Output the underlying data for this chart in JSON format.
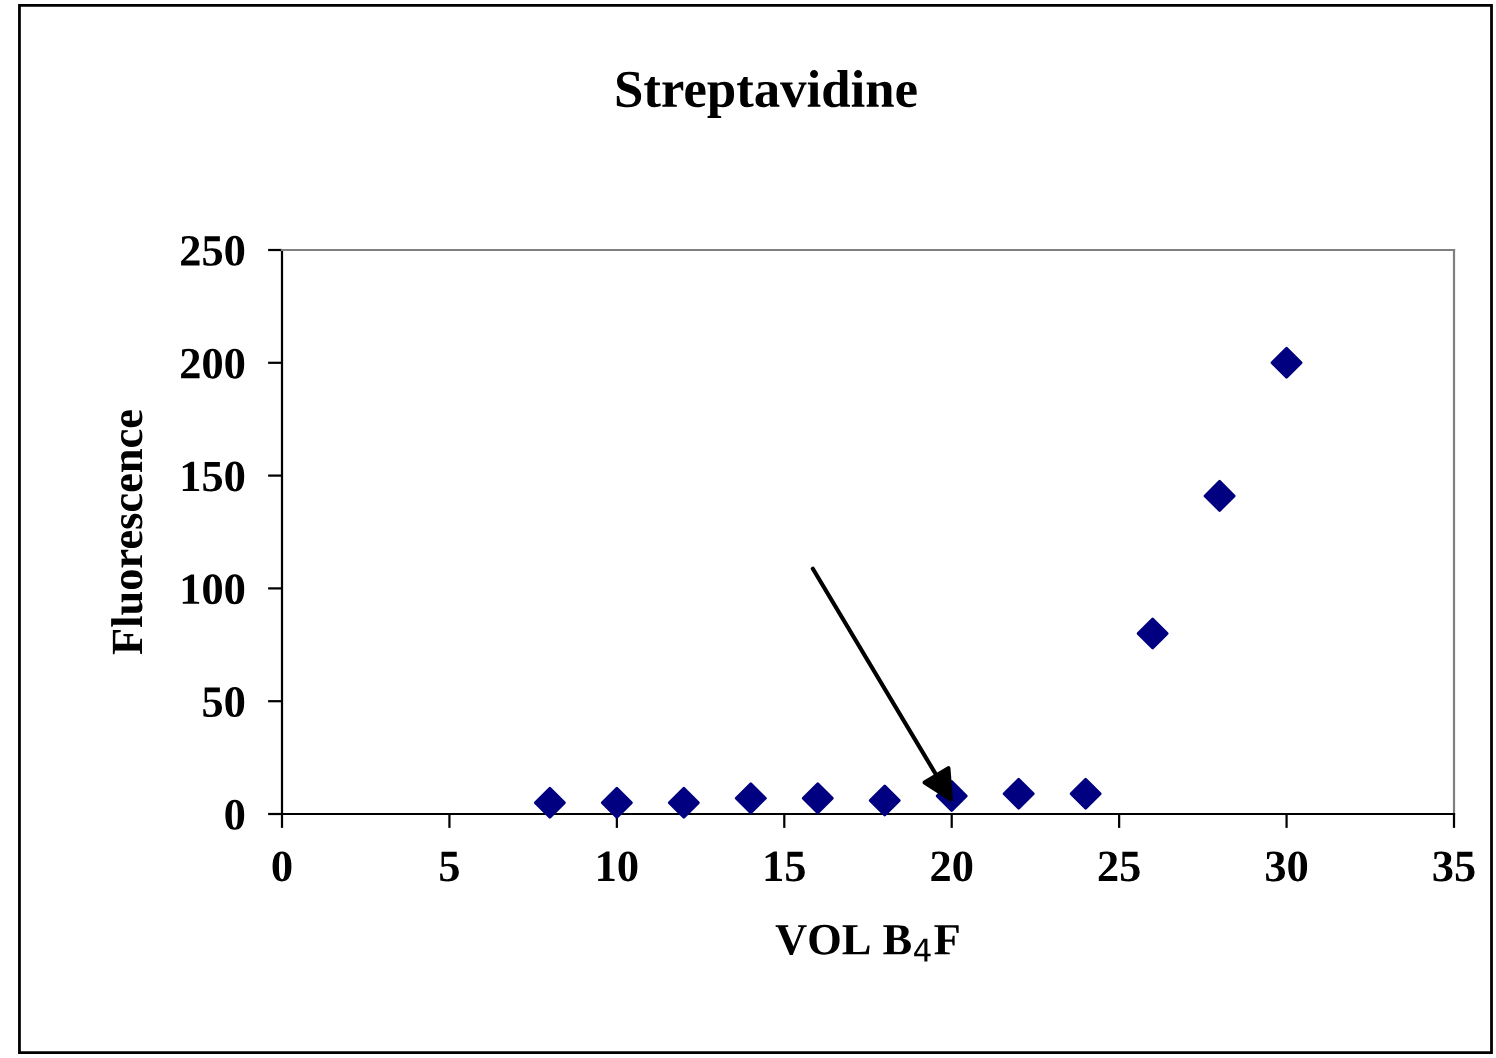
{
  "chart_data": {
    "type": "scatter",
    "title": "Streptavidine",
    "xlabel": "VOL B$_{4}$F",
    "ylabel": "Fluorescence",
    "x": [
      8,
      10,
      12,
      14,
      16,
      18,
      20,
      22,
      24,
      26,
      28,
      30
    ],
    "series": [
      {
        "color": "#000080",
        "values": [
          5,
          5,
          5,
          7,
          7,
          6,
          8,
          9,
          9,
          80,
          141,
          200
        ]
      }
    ],
    "marker": "diamond",
    "xlim": [
      0,
      35
    ],
    "xticks": [
      0,
      5,
      10,
      15,
      20,
      25,
      30,
      35
    ],
    "ylim": [
      0,
      250
    ],
    "yticks": [
      0,
      50,
      100,
      150,
      200,
      250
    ],
    "grid": false,
    "legend": false
  }
}
